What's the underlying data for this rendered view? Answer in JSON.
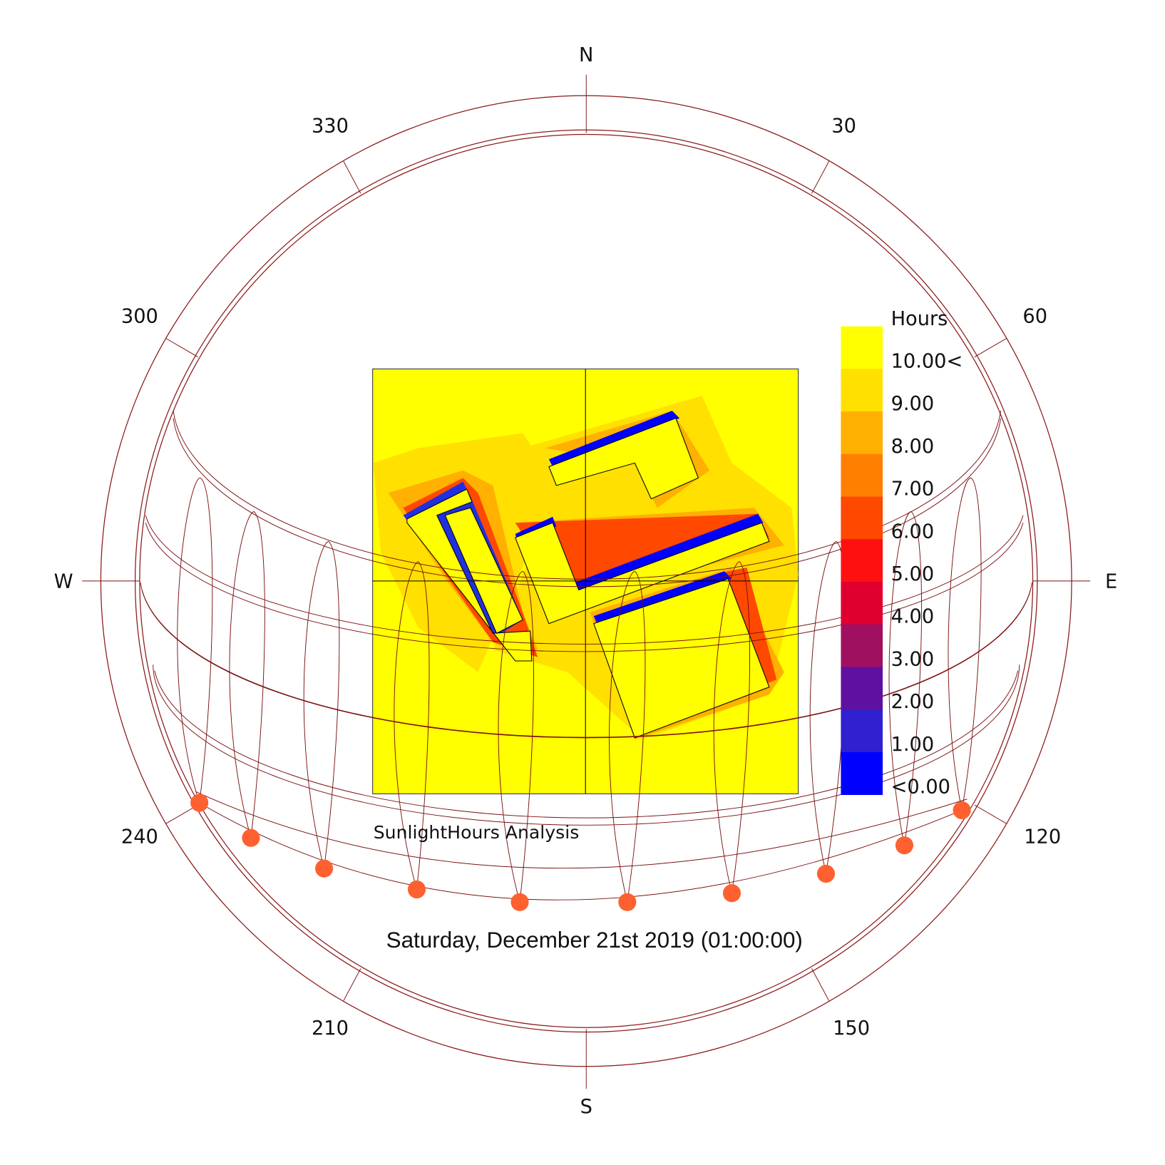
{
  "compass": {
    "north": "N",
    "east": "E",
    "south": "S",
    "west": "W",
    "bearings": [
      "30",
      "60",
      "120",
      "150",
      "210",
      "240",
      "300",
      "330"
    ]
  },
  "legend": {
    "title": "Hours",
    "items": [
      {
        "label": "10.00<",
        "color": "#ffff00"
      },
      {
        "label": "9.00",
        "color": "#ffe000"
      },
      {
        "label": "8.00",
        "color": "#ffb000"
      },
      {
        "label": "7.00",
        "color": "#ff8000"
      },
      {
        "label": "6.00",
        "color": "#ff4800"
      },
      {
        "label": "5.00",
        "color": "#ff1010"
      },
      {
        "label": "4.00",
        "color": "#e00030"
      },
      {
        "label": "3.00",
        "color": "#a01060"
      },
      {
        "label": "2.00",
        "color": "#6010a0"
      },
      {
        "label": "1.00",
        "color": "#3020d0"
      },
      {
        "label": "<0.00",
        "color": "#0000ff"
      }
    ]
  },
  "analysis_title": "SunlightHours Analysis",
  "date": "Saturday, December 21st 2019 (01:00:00)"
}
